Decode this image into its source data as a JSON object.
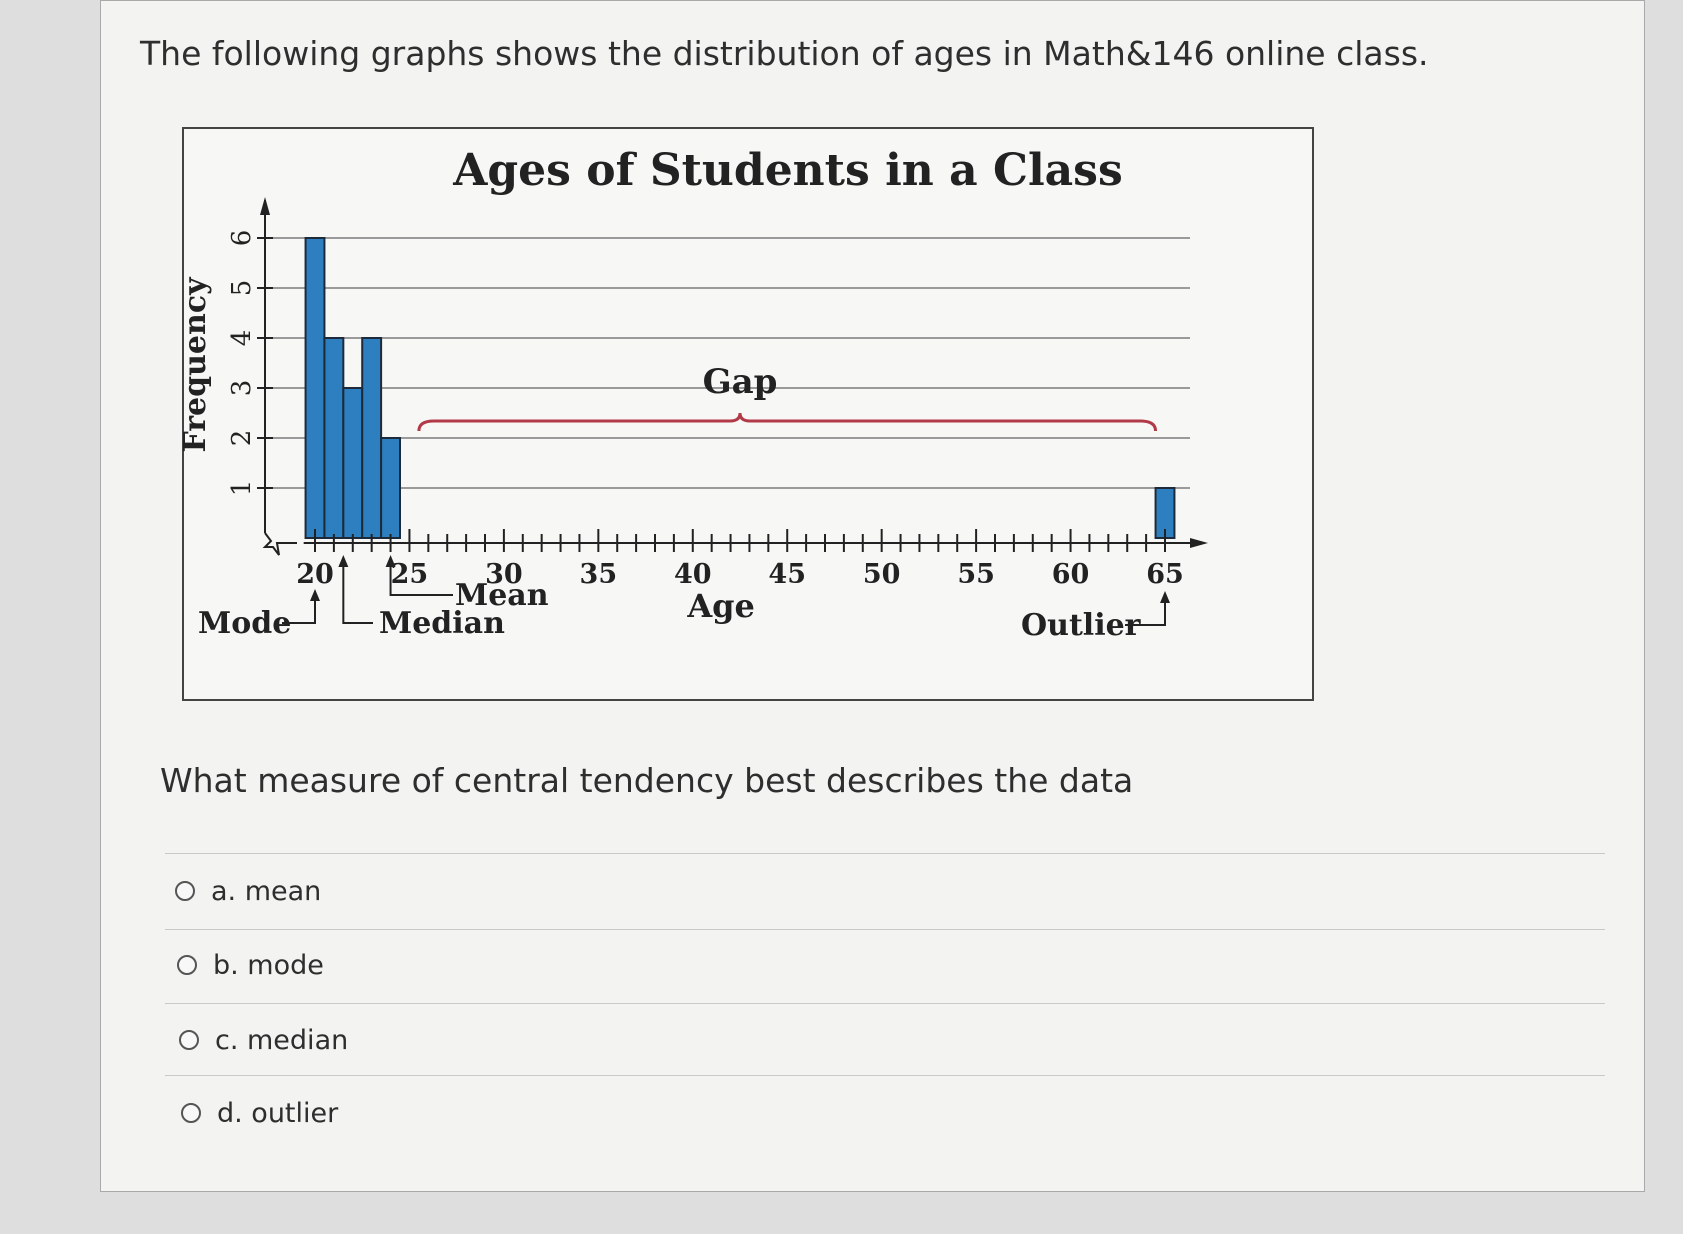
{
  "prompt": "The following graphs shows the distribution of ages in Math&146 online class.",
  "question": "What measure of central tendency best describes the data",
  "options": [
    {
      "label": "a. mean",
      "selected": false
    },
    {
      "label": "b. mode",
      "selected": false
    },
    {
      "label": "c. median",
      "selected": false
    },
    {
      "label": "d. outlier",
      "selected": false
    }
  ],
  "chart_data": {
    "type": "bar",
    "title": "Ages of Students in a Class",
    "xlabel": "Age",
    "ylabel": "Frequency",
    "x_ticks": [
      20,
      25,
      30,
      35,
      40,
      45,
      50,
      55,
      60,
      65
    ],
    "y_ticks": [
      1,
      2,
      3,
      4,
      5,
      6
    ],
    "bars": [
      {
        "age": 20,
        "frequency": 6
      },
      {
        "age": 21,
        "frequency": 4
      },
      {
        "age": 22,
        "frequency": 3
      },
      {
        "age": 23,
        "frequency": 4
      },
      {
        "age": 24,
        "frequency": 2
      },
      {
        "age": 65,
        "frequency": 1
      }
    ],
    "xlim": [
      19,
      67
    ],
    "ylim": [
      0,
      6.8
    ],
    "grid": true,
    "bar_color": "#2d7fbf",
    "annotations": {
      "gap": "Gap",
      "mode": "Mode",
      "median": "Median",
      "mean": "Mean",
      "outlier": "Outlier"
    }
  }
}
